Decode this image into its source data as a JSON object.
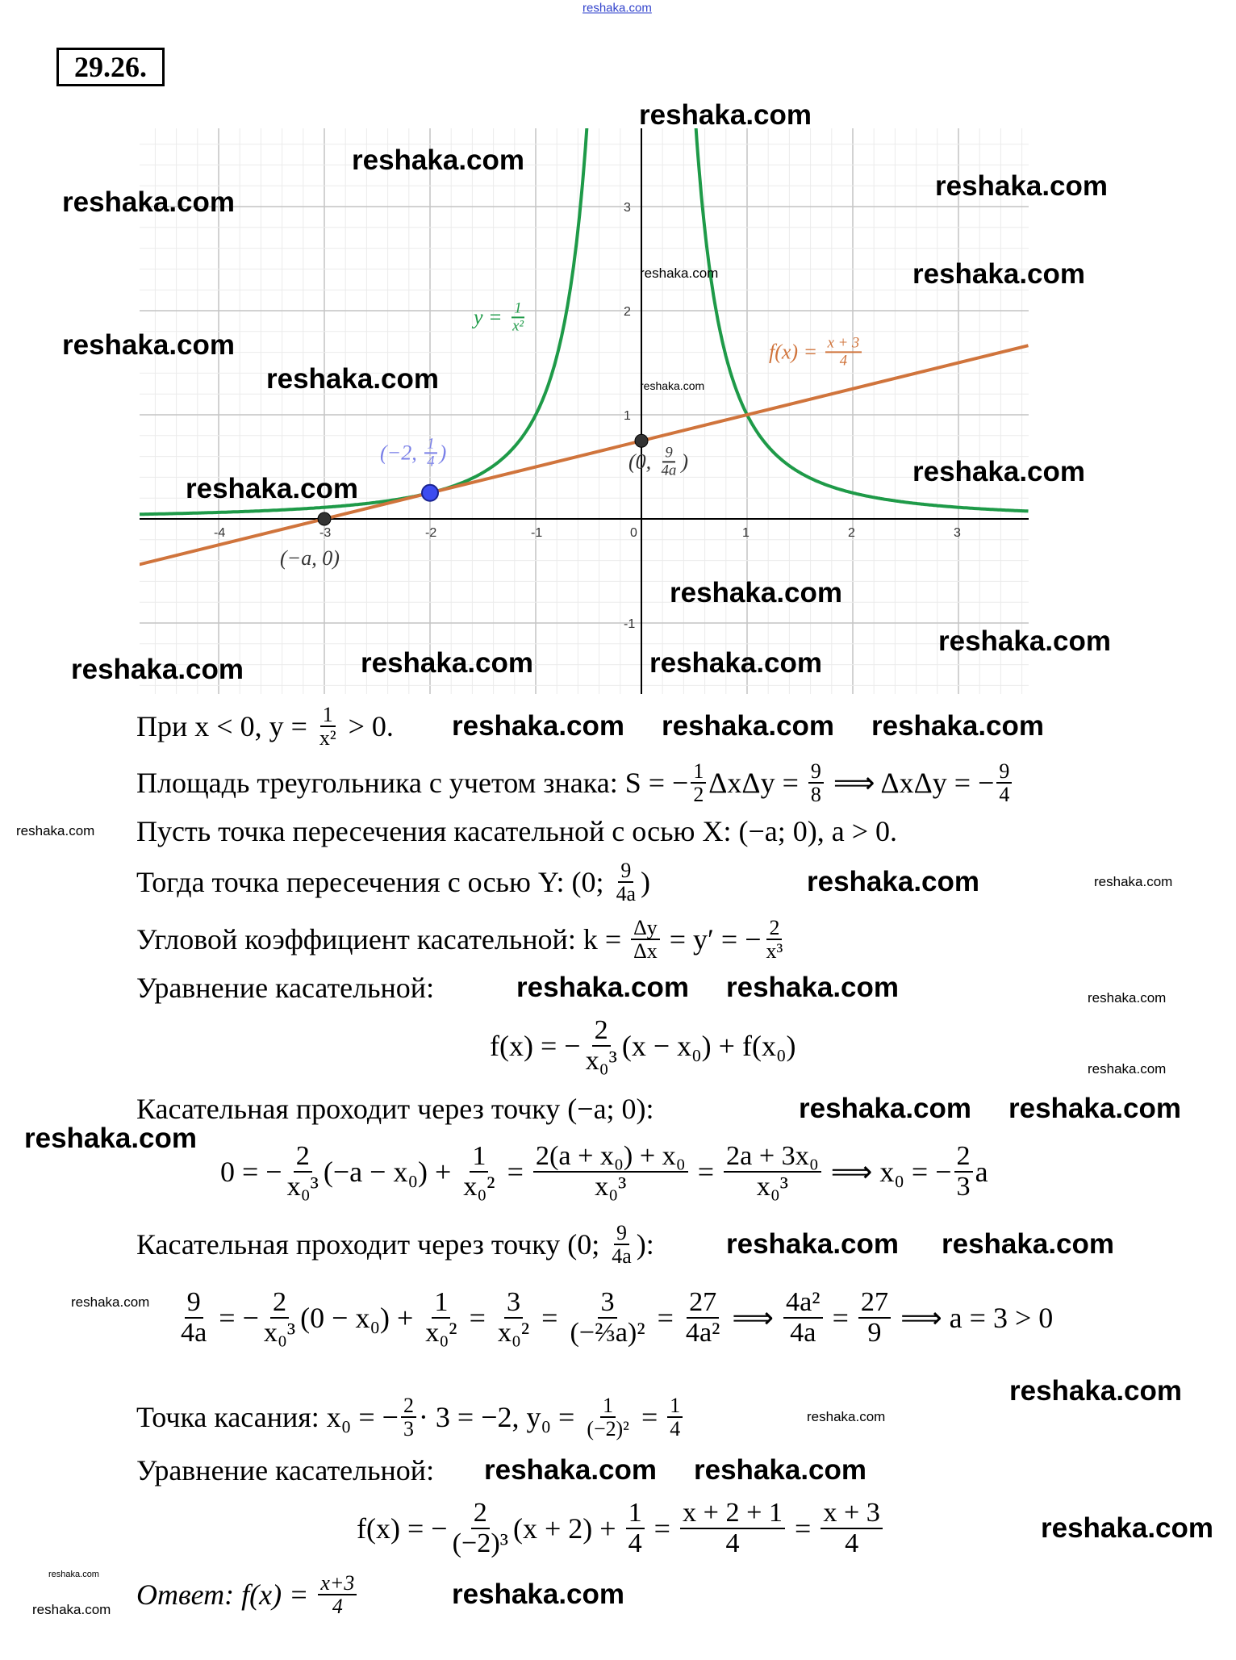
{
  "title": "29.26.",
  "graph": {
    "x_ticks": [
      "-4",
      "-3",
      "-2",
      "-1",
      "0",
      "1",
      "2",
      "3"
    ],
    "y_ticks": [
      "-1",
      "1",
      "2",
      "3"
    ],
    "xlim": [
      -4.75,
      3.66
    ],
    "ylim": [
      -1.68,
      3.75
    ],
    "colors": {
      "curve": "#1e9a48",
      "tangent": "#d0743c",
      "tangent_point": "#3d4cf0",
      "points": "#333333",
      "grid_major": "#c4c4c4",
      "grid_minor": "#ebebeb"
    },
    "curve_label": [
      "y = ",
      {
        "n": "1",
        "d": "x²"
      }
    ],
    "tangent_label": [
      "f(x) = ",
      {
        "n": "x + 3",
        "d": "4"
      }
    ],
    "tangent_point_label": [
      "(−2, ",
      {
        "n": "1",
        "d": "4"
      },
      ")"
    ],
    "y_point_label": [
      "(0, ",
      {
        "n": "9",
        "d": "4a"
      },
      ")"
    ],
    "x_point_label": [
      "(−a, 0)"
    ],
    "tangent_point": [
      -2,
      0.25
    ],
    "x_intercept": [
      -3,
      0
    ],
    "y_intercept": [
      0,
      0.75
    ]
  },
  "lines": [
    [
      "При x < 0, y = ",
      {
        "n": "1",
        "d": "x²"
      },
      " > 0."
    ],
    [
      "Площадь треугольника с учетом знака: S = −",
      {
        "n": "1",
        "d": "2"
      },
      "ΔxΔy = ",
      {
        "n": "9",
        "d": "8"
      },
      " ⟹ ΔxΔy = −",
      {
        "n": "9",
        "d": "4"
      }
    ],
    [
      "Пусть точка пересечения касательной с осью X: (−a; 0), a > 0."
    ],
    [
      "Тогда точка пересечения с осью Y: (0; ",
      {
        "n": "9",
        "d": "4a"
      },
      ")"
    ],
    [
      "Угловой коэффициент касательной: k = ",
      {
        "n": "Δy",
        "d": "Δx"
      },
      " = y′ = −",
      {
        "n": "2",
        "d": "x³"
      }
    ],
    [
      "Уравнение касательной:"
    ],
    [
      "f(x) = −",
      {
        "n": "2",
        "d": "x₀³"
      },
      "(x − x₀) + f(x₀)"
    ],
    [
      "Касательная проходит через точку (−a; 0):"
    ],
    [
      "0 = −",
      {
        "n": "2",
        "d": "x₀³"
      },
      "(−a − x₀) + ",
      {
        "n": "1",
        "d": "x₀²"
      },
      " = ",
      {
        "n": "2(a + x₀) + x₀",
        "d": "x₀³"
      },
      " = ",
      {
        "n": "2a + 3x₀",
        "d": "x₀³"
      },
      " ⟹ x₀ = −",
      {
        "n": "2",
        "d": "3"
      },
      "a"
    ],
    [
      "Касательная проходит через точку (0; ",
      {
        "n": "9",
        "d": "4a"
      },
      "):"
    ],
    [
      {
        "n": "9",
        "d": "4a"
      },
      " = −",
      {
        "n": "2",
        "d": "x₀³"
      },
      "(0 − x₀) + ",
      {
        "n": "1",
        "d": "x₀²"
      },
      " = ",
      {
        "n": "3",
        "d": "x₀²"
      },
      " = ",
      {
        "n": "3",
        "d": "(−⅔a)²"
      },
      " = ",
      {
        "n": "27",
        "d": "4a²"
      },
      " ⟹ ",
      {
        "n": "4a²",
        "d": "4a"
      },
      " = ",
      {
        "n": "27",
        "d": "9"
      },
      " ⟹ a = 3 > 0"
    ],
    [
      "Точка касания: x₀ = −",
      {
        "n": "2",
        "d": "3"
      },
      "· 3 = −2, y₀ = ",
      {
        "n": "1",
        "d": "(−2)²"
      },
      " = ",
      {
        "n": "1",
        "d": "4"
      }
    ],
    [
      "Уравнение касательной:"
    ],
    [
      "f(x) = −",
      {
        "n": "2",
        "d": "(−2)³"
      },
      "(x + 2) + ",
      {
        "n": "1",
        "d": "4"
      },
      " = ",
      {
        "n": "x + 2 + 1",
        "d": "4"
      },
      " = ",
      {
        "n": "x + 3",
        "d": "4"
      }
    ],
    [
      "Ответ: f(x) = ",
      {
        "n": "x+3",
        "d": "4"
      }
    ]
  ],
  "watermarks": [
    "reshaka.com",
    "reshaka.com",
    "reshaka.com",
    "reshaka.com",
    "reshaka.com",
    "reshaka.com",
    "reshaka.com",
    "reshaka.com",
    "reshaka.com",
    "reshaka.com",
    "reshaka.com",
    "reshaka.com",
    "reshaka.com",
    "reshaka.com",
    "reshaka.com",
    "reshaka.com",
    "reshaka.com",
    "reshaka.com",
    "reshaka.com",
    "reshaka.com",
    "reshaka.com",
    "reshaka.com",
    "reshaka.com",
    "reshaka.com",
    "reshaka.com",
    "reshaka.com",
    "reshaka.com",
    "reshaka.com",
    "reshaka.com",
    "reshaka.com",
    "reshaka.com",
    "reshaka.com",
    "reshaka.com",
    "reshaka.com",
    "reshaka.com",
    "reshaka.com",
    "reshaka.com",
    "reshaka.com",
    "reshaka.com",
    "reshaka.com",
    "reshaka.com"
  ]
}
